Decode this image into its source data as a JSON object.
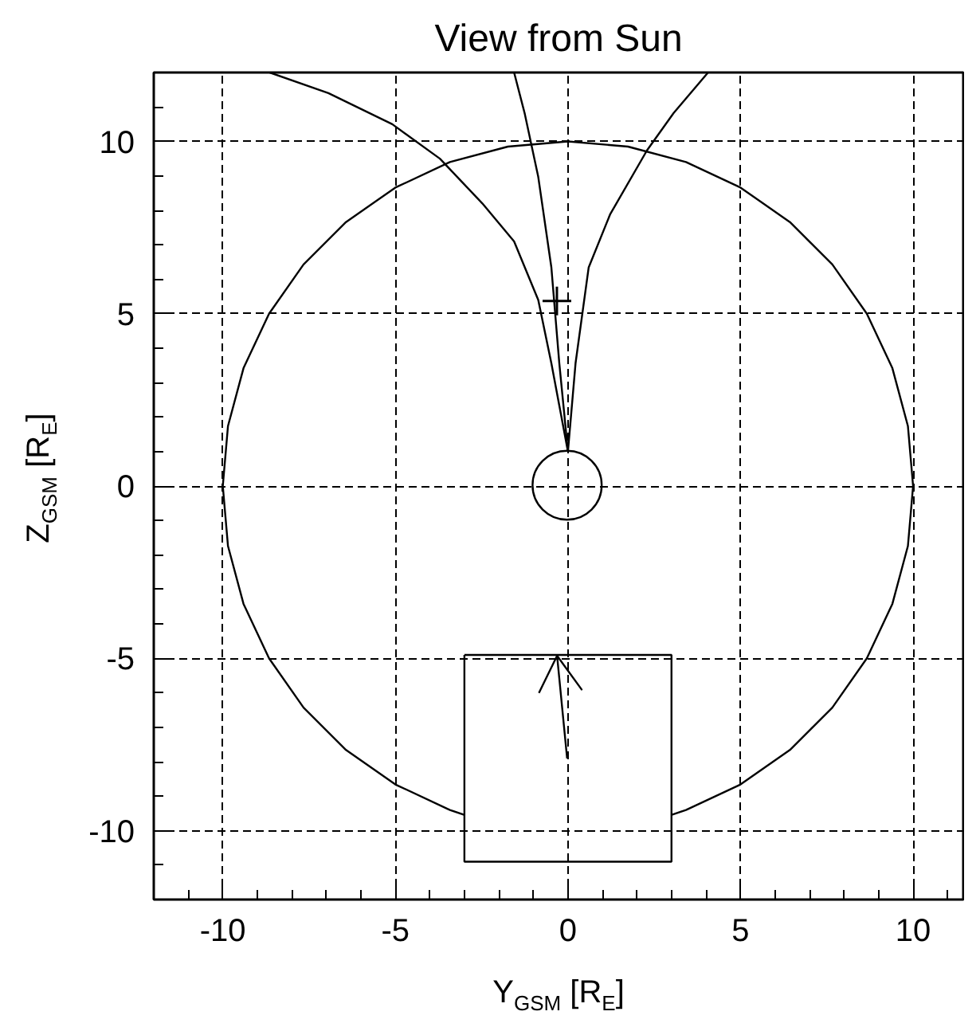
{
  "chart_data": {
    "type": "line",
    "title": "View from Sun",
    "xlabel": "Y$_{GSM}$ [R$_{E}$]",
    "ylabel": "Z$_{GSM}$ [R$_{E}$]",
    "xlim": [
      -12,
      11.5
    ],
    "ylim": [
      -12,
      12
    ],
    "grid": true,
    "xticks": [
      {
        "value": -11,
        "label": null
      },
      -10,
      {
        "value": -9,
        "label": null
      },
      {
        "value": -8,
        "label": null
      },
      {
        "value": -7,
        "label": null
      },
      {
        "value": -6,
        "label": null
      },
      -5,
      {
        "value": -4,
        "label": null
      },
      {
        "value": -3,
        "label": null
      },
      {
        "value": -2,
        "label": null
      },
      {
        "value": -1,
        "label": null
      },
      0,
      {
        "value": 1,
        "label": null
      },
      {
        "value": 2,
        "label": null
      },
      {
        "value": 3,
        "label": null
      },
      {
        "value": 4,
        "label": null
      },
      5,
      {
        "value": 6,
        "label": null
      },
      {
        "value": 7,
        "label": null
      },
      {
        "value": 8,
        "label": null
      },
      {
        "value": 9,
        "label": null
      },
      10,
      {
        "value": 11,
        "label": null
      }
    ],
    "yticks": [
      {
        "value": -11,
        "label": null
      },
      -10,
      {
        "value": -9,
        "label": null
      },
      {
        "value": -8,
        "label": null
      },
      {
        "value": -7,
        "label": null
      },
      {
        "value": -6,
        "label": null
      },
      -5,
      {
        "value": -4,
        "label": null
      },
      {
        "value": -3,
        "label": null
      },
      {
        "value": -2,
        "label": null
      },
      {
        "value": -1,
        "label": null
      },
      0,
      {
        "value": 1,
        "label": null
      },
      {
        "value": 2,
        "label": null
      },
      {
        "value": 3,
        "label": null
      },
      {
        "value": 4,
        "label": null
      },
      5,
      {
        "value": 6,
        "label": null
      },
      {
        "value": 7,
        "label": null
      },
      {
        "value": 8,
        "label": null
      },
      {
        "value": 9,
        "label": null
      },
      10,
      {
        "value": 11,
        "label": null
      }
    ],
    "series": [
      {
        "color": "#000000",
        "x": [
          3.01,
          3.42,
          5.0,
          6.43,
          7.66,
          8.66,
          9.4,
          9.85,
          10,
          9.85,
          9.4,
          8.66,
          7.66,
          6.43,
          5.0,
          3.42,
          1.74,
          0,
          -1.74,
          -3.42,
          -5.0,
          -6.43,
          -7.66,
          -8.66,
          -9.4,
          -9.85,
          -10,
          -9.85,
          -9.4,
          -8.66,
          -7.66,
          -6.43,
          -5.0,
          -3.42,
          -3.01
        ],
        "values": [
          -9.54,
          -9.4,
          -8.66,
          -7.66,
          -6.43,
          -5.0,
          -3.42,
          -1.74,
          0,
          1.74,
          3.42,
          5.0,
          6.43,
          7.66,
          8.66,
          9.4,
          9.85,
          10,
          9.85,
          9.4,
          8.66,
          7.66,
          6.43,
          5.0,
          3.42,
          1.74,
          0,
          -1.74,
          -3.42,
          -5.0,
          -6.43,
          -7.66,
          -8.66,
          -9.4,
          -9.54
        ]
      },
      {
        "color": "#000000",
        "x": [
          -8.64,
          -6.94,
          -5.09,
          -3.71,
          -2.48,
          -1.56,
          -0.86,
          -0.48,
          0
        ],
        "values": [
          12.0,
          11.4,
          10.5,
          9.5,
          8.2,
          7.1,
          5.4,
          3.56,
          1.0
        ]
      },
      {
        "color": "#000000",
        "x": [
          -1.56,
          -1.25,
          -0.86,
          -0.48,
          -0.25,
          0
        ],
        "values": [
          12.0,
          10.8,
          8.97,
          6.34,
          3.56,
          1.0
        ]
      },
      {
        "color": "#000000",
        "x": [
          0,
          0.22,
          0.6,
          1.22,
          2.29,
          3.06,
          4.06
        ],
        "values": [
          1.0,
          3.56,
          6.34,
          7.88,
          9.74,
          10.82,
          12.0
        ]
      },
      {
        "type": "scatter",
        "marker": "cross",
        "color": "#000000",
        "x": [
          -0.32
        ],
        "values": [
          5.37
        ]
      }
    ]
  }
}
